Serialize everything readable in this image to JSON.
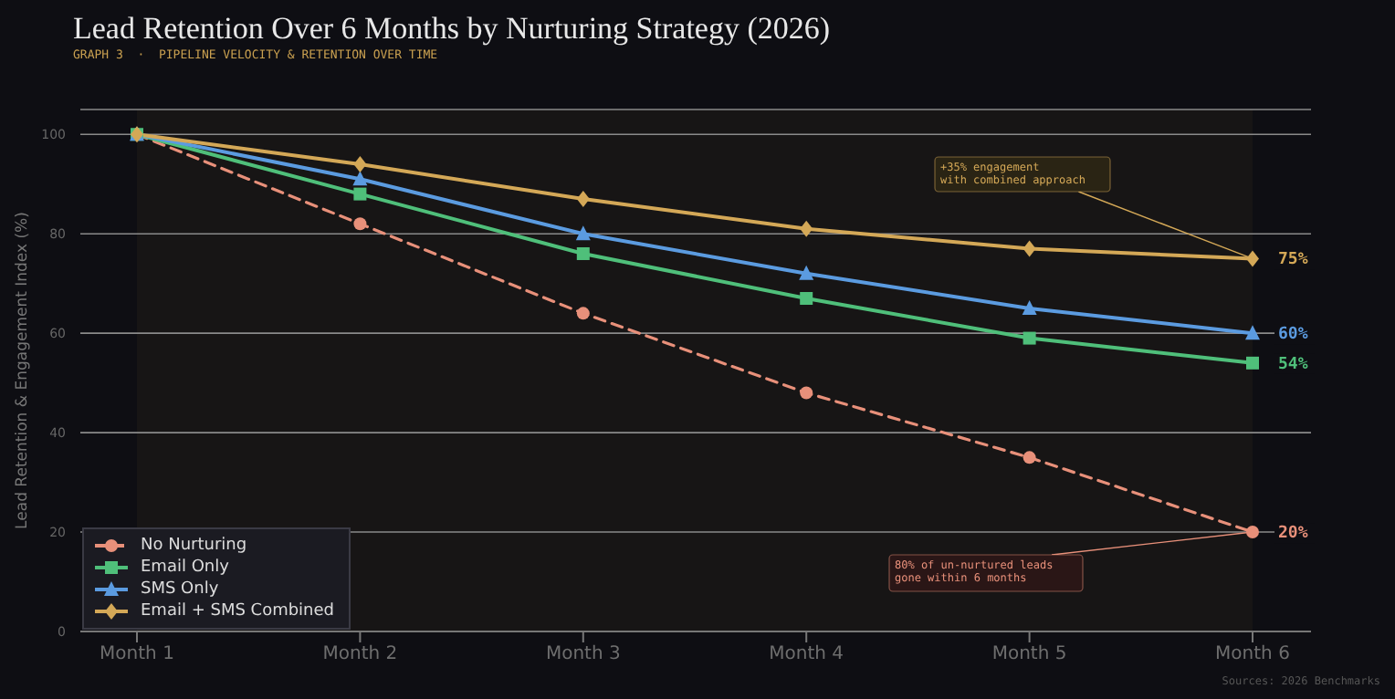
{
  "chart_data": {
    "type": "line",
    "title": "Lead Retention Over 6 Months by Nurturing Strategy (2026)",
    "subtitle": "GRAPH 3  ·  PIPELINE VELOCITY & RETENTION OVER TIME",
    "ylabel": "Lead Retention & Engagement Index (%)",
    "categories": [
      "Month 1",
      "Month 2",
      "Month 3",
      "Month 4",
      "Month 5",
      "Month 6"
    ],
    "series": [
      {
        "name": "No Nurturing",
        "color": "#e8907a",
        "values": [
          100,
          82,
          64,
          48,
          35,
          20
        ],
        "marker": "circle",
        "line_style": "dashed",
        "value_labels": [
          null,
          null,
          null,
          null,
          null,
          "20%"
        ]
      },
      {
        "name": "Email Only",
        "color": "#4fbf7a",
        "values": [
          100,
          88,
          76,
          67,
          59,
          54
        ],
        "marker": "square",
        "line_style": "solid",
        "value_labels": [
          null,
          null,
          null,
          null,
          null,
          "54%"
        ]
      },
      {
        "name": "SMS Only",
        "color": "#5b9be0",
        "values": [
          100,
          91,
          80,
          72,
          65,
          60
        ],
        "marker": "triangle",
        "line_style": "solid",
        "value_labels": [
          null,
          null,
          null,
          null,
          null,
          "60%"
        ]
      },
      {
        "name": "Email + SMS Combined",
        "color": "#d4a857",
        "values": [
          100,
          94,
          87,
          81,
          77,
          75
        ],
        "marker": "diamond",
        "line_style": "solid",
        "value_labels": [
          null,
          null,
          null,
          null,
          null,
          "75%"
        ]
      }
    ],
    "ylim": [
      0,
      105
    ],
    "yticks": [
      0,
      20,
      40,
      60,
      80,
      100
    ],
    "grid": "y",
    "legend": "bottom left",
    "annotations": [
      {
        "text": "+35% engagement\nwith combined approach",
        "x": "Month 6",
        "y": 75
      },
      {
        "text": "80% of un-nurtured leads\ngone within 6 months",
        "x": "Month 6",
        "y": 20
      },
      "Sources: 2026 Benchmarks"
    ]
  }
}
